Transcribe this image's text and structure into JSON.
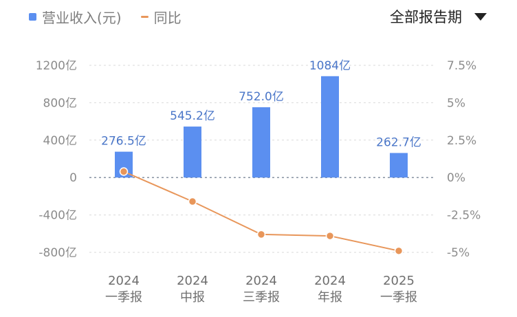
{
  "legend": {
    "bar_label": "营业收入(元)",
    "line_label": "同比"
  },
  "period_selector": {
    "label": "全部报告期"
  },
  "colors": {
    "bar": "#5b8ff0",
    "line": "#e8965a",
    "grid": "#d9d9d9",
    "zero": "#7b8798"
  },
  "chart_data": {
    "type": "bar",
    "categories": [
      [
        "2024",
        "一季报"
      ],
      [
        "2024",
        "中报"
      ],
      [
        "2024",
        "三季报"
      ],
      [
        "2024",
        "年报"
      ],
      [
        "2025",
        "一季报"
      ]
    ],
    "series": [
      {
        "name": "营业收入(元)",
        "type": "bar",
        "axis": "left",
        "values": [
          276.5,
          545.2,
          752.0,
          1084,
          262.7
        ],
        "labels": [
          "276.5亿",
          "545.2亿",
          "752.0亿",
          "1084亿",
          "262.7亿"
        ]
      },
      {
        "name": "同比",
        "type": "line",
        "axis": "right",
        "values": [
          0.4,
          -1.6,
          -3.8,
          -3.9,
          -4.9
        ]
      }
    ],
    "left_axis": {
      "ylim": [
        -800,
        1200
      ],
      "ticks": [
        1200,
        800,
        400,
        0,
        -400,
        -800
      ],
      "tick_labels": [
        "1200亿",
        "800亿",
        "400亿",
        "0",
        "-400亿",
        "-800亿"
      ]
    },
    "right_axis": {
      "ylim": [
        -5,
        7.5
      ],
      "ticks": [
        7.5,
        5,
        2.5,
        0,
        -2.5,
        -5
      ],
      "tick_labels": [
        "7.5%",
        "5%",
        "2.5%",
        "0%",
        "-2.5%",
        "-5%"
      ]
    },
    "grid": true
  }
}
